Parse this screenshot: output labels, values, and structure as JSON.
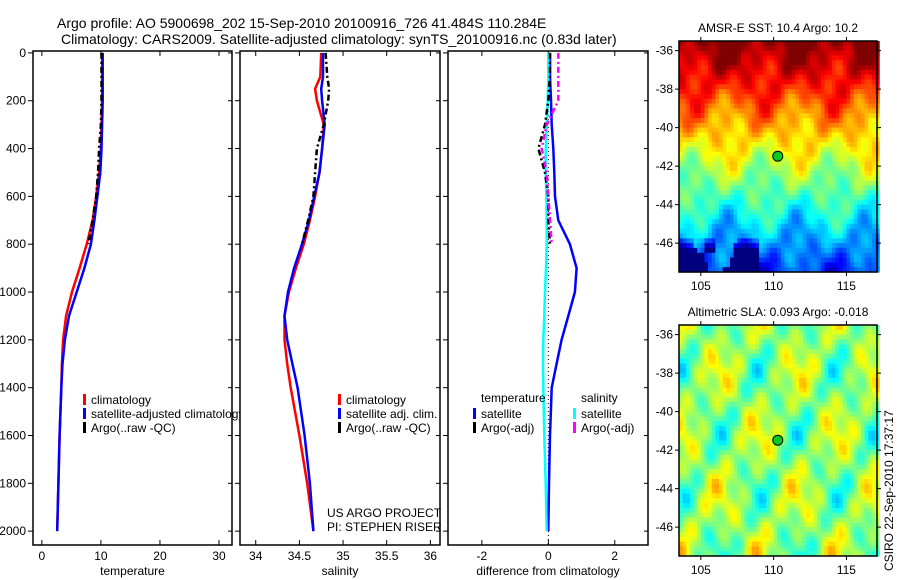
{
  "header": {
    "line1": "Argo profile: AO 5900698_202 15-Sep-2010 20100916_726 41.484S 110.284E",
    "line2": "Climatology: CARS2009. Satellite-adjusted climatology: synTS_20100916.nc (0.83d later)"
  },
  "credit": {
    "project": "US ARGO PROJECT",
    "pi": "PI: STEPHEN RISER",
    "stamp": "CSIRO 22-Sep-2010 17:37:17"
  },
  "colors": {
    "climatology": "#ff0000",
    "satellite": "#0000ff",
    "argo": "#000000",
    "sal_satellite": "#00ffff",
    "sal_argo": "#ff00ff"
  },
  "chart_data": [
    {
      "type": "line",
      "id": "temperature",
      "xlabel": "temperature",
      "xlim": [
        -1.5,
        32.2
      ],
      "ylim": [
        2058,
        -8
      ],
      "xticks": [
        0,
        10,
        20,
        30
      ],
      "yticks": [
        0,
        200,
        400,
        600,
        800,
        1000,
        1200,
        1400,
        1600,
        1800,
        2000
      ],
      "legend": [
        "climatology",
        "satellite-adjusted climatology",
        "Argo(..raw -QC)"
      ],
      "depth": [
        0,
        100,
        200,
        300,
        400,
        500,
        600,
        700,
        800,
        900,
        1000,
        1100,
        1200,
        1300,
        1400,
        1600,
        1800,
        2000
      ],
      "series": [
        {
          "name": "climatology",
          "color": "#ff0000",
          "values": [
            10.2,
            10.2,
            10.2,
            10.1,
            10.0,
            9.7,
            9.2,
            8.6,
            7.6,
            6.4,
            5.1,
            4.1,
            3.6,
            3.4,
            3.3,
            3.0,
            2.8,
            2.6
          ]
        },
        {
          "name": "satellite-adjusted climatology",
          "color": "#0000ff",
          "values": [
            10.3,
            10.3,
            10.3,
            10.2,
            10.1,
            9.9,
            9.4,
            8.9,
            8.3,
            7.2,
            5.9,
            4.6,
            3.9,
            3.5,
            3.3,
            3.0,
            2.8,
            2.6
          ]
        },
        {
          "name": "Argo(..raw -QC)",
          "color": "#000000",
          "dash": true,
          "values": [
            10.1,
            10.1,
            10.1,
            10.0,
            9.7,
            9.5,
            9.2,
            8.6,
            7.9,
            null,
            null,
            null,
            null,
            null,
            null,
            null,
            null,
            null
          ]
        }
      ]
    },
    {
      "type": "line",
      "id": "salinity",
      "xlabel": "salinity",
      "xlim": [
        33.82,
        36.11
      ],
      "ylim": [
        2058,
        -8
      ],
      "xticks": [
        34,
        34.5,
        35,
        35.5,
        36
      ],
      "yticks": [
        0,
        200,
        400,
        600,
        800,
        1000,
        1200,
        1400,
        1600,
        1800,
        2000
      ],
      "legend": [
        "climatology",
        "satellite adj. clim.",
        "Argo(..raw -QC)"
      ],
      "depth": [
        0,
        100,
        150,
        200,
        300,
        400,
        500,
        600,
        700,
        800,
        900,
        1000,
        1100,
        1200,
        1300,
        1400,
        1600,
        1800,
        2000
      ],
      "series": [
        {
          "name": "climatology",
          "color": "#ff0000",
          "values": [
            34.75,
            34.74,
            34.68,
            34.7,
            34.78,
            34.76,
            34.73,
            34.68,
            34.62,
            34.55,
            34.46,
            34.38,
            34.33,
            34.33,
            34.36,
            34.4,
            34.5,
            34.59,
            34.66
          ]
        },
        {
          "name": "satellite adj. clim.",
          "color": "#0000ff",
          "values": [
            34.77,
            34.77,
            34.75,
            34.76,
            34.79,
            34.76,
            34.73,
            34.67,
            34.61,
            34.53,
            34.44,
            34.37,
            34.33,
            34.36,
            34.42,
            34.48,
            34.56,
            34.62,
            34.66
          ]
        },
        {
          "name": "Argo(..raw -QC)",
          "color": "#000000",
          "dash": true,
          "values": [
            34.8,
            34.82,
            34.84,
            34.83,
            34.78,
            34.7,
            34.68,
            34.66,
            34.6,
            34.53,
            null,
            null,
            null,
            null,
            null,
            null,
            null,
            null,
            null
          ]
        }
      ]
    },
    {
      "type": "line",
      "id": "difference",
      "xlabel": "difference from climatology",
      "xlim": [
        -3.02,
        3.0
      ],
      "ylim": [
        2058,
        -8
      ],
      "xticks": [
        -2,
        0,
        2
      ],
      "yticks": [
        0,
        200,
        400,
        600,
        800,
        1000,
        1200,
        1400,
        1600,
        1800,
        2000
      ],
      "legend_headers": [
        "temperature",
        "salinity"
      ],
      "legend": [
        "satellite",
        "Argo(-adj)",
        "satellite",
        "Argo(-adj)"
      ],
      "depth": [
        0,
        100,
        200,
        300,
        400,
        500,
        600,
        700,
        800,
        900,
        1000,
        1100,
        1200,
        1300,
        1400,
        1600,
        1800,
        2000
      ],
      "series": [
        {
          "name": "temperature satellite",
          "color": "#0000ff",
          "values": [
            0.05,
            0.05,
            0.08,
            0.1,
            0.15,
            0.18,
            0.2,
            0.3,
            0.65,
            0.85,
            0.8,
            0.6,
            0.4,
            0.25,
            0.1,
            0.05,
            0.02,
            0.0
          ]
        },
        {
          "name": "salinity satellite",
          "color": "#00ffff",
          "values": [
            0.0,
            0.0,
            -0.02,
            -0.05,
            -0.08,
            -0.08,
            -0.06,
            -0.05,
            -0.05,
            -0.07,
            -0.1,
            -0.12,
            -0.15,
            -0.16,
            -0.15,
            -0.12,
            -0.08,
            -0.05
          ]
        },
        {
          "name": "temperature Argo(-adj)",
          "color": "#000000",
          "dash": true,
          "values": [
            0.05,
            0.05,
            0.0,
            -0.1,
            -0.3,
            -0.1,
            0.0,
            0.0,
            0.05,
            null,
            null,
            null,
            null,
            null,
            null,
            null,
            null,
            null
          ]
        },
        {
          "name": "salinity Argo(-adj)",
          "color": "#ff00ff",
          "dash": true,
          "values": [
            0.3,
            0.3,
            0.3,
            -0.05,
            -0.2,
            -0.05,
            0.0,
            0.05,
            0.1,
            null,
            null,
            null,
            null,
            null,
            null,
            null,
            null,
            null
          ]
        }
      ]
    },
    {
      "type": "heatmap",
      "id": "sst-map",
      "title": "AMSR-E SST: 10.4 Argo: 10.2",
      "xlim": [
        103.5,
        117.1
      ],
      "ylim": [
        -47.5,
        -35.5
      ],
      "xticks": [
        105,
        110,
        115
      ],
      "yticks": [
        -36,
        -38,
        -40,
        -42,
        -44,
        -46
      ],
      "marker": {
        "lon": 110.284,
        "lat": -41.484
      }
    },
    {
      "type": "heatmap",
      "id": "sla-map",
      "title": "Altimetric SLA: 0.093 Argo: -0.018",
      "xlim": [
        103.5,
        117.1
      ],
      "ylim": [
        -47.5,
        -35.5
      ],
      "xticks": [
        105,
        110,
        115
      ],
      "yticks": [
        -36,
        -38,
        -40,
        -42,
        -44,
        -46
      ],
      "marker": {
        "lon": 110.284,
        "lat": -41.484
      }
    }
  ]
}
